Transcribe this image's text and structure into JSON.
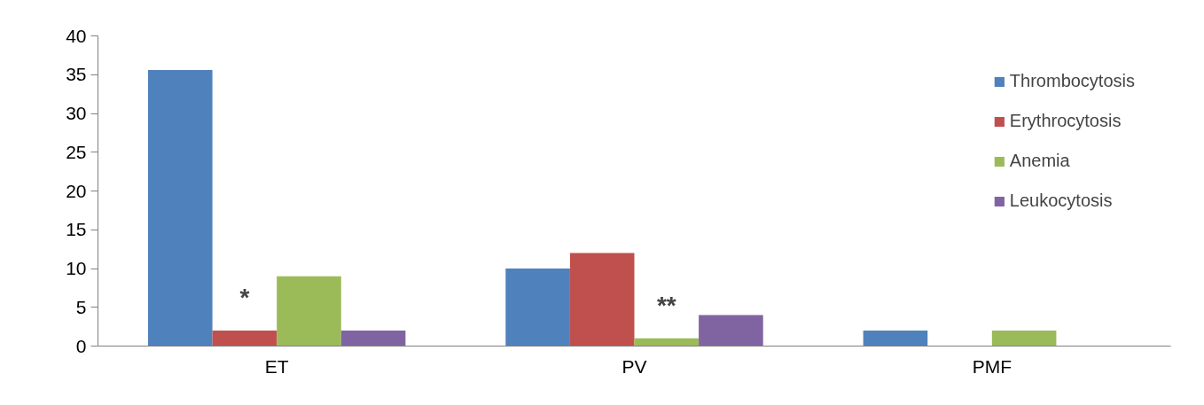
{
  "chart_data": {
    "type": "bar",
    "categories": [
      "ET",
      "PV",
      "PMF"
    ],
    "series": [
      {
        "name": "Thrombocytosis",
        "color": "#4f81bd",
        "values": [
          35.6,
          10,
          2
        ]
      },
      {
        "name": "Erythrocytosis",
        "color": "#c0504d",
        "values": [
          2,
          12,
          0
        ]
      },
      {
        "name": "Anemia",
        "color": "#9bbb59",
        "values": [
          9,
          1,
          2
        ]
      },
      {
        "name": "Leukocytosis",
        "color": "#8064a2",
        "values": [
          2,
          4,
          0
        ]
      }
    ],
    "ylim": [
      0,
      40
    ],
    "yticks": [
      0,
      5,
      10,
      15,
      20,
      25,
      30,
      35,
      40
    ],
    "grid": false,
    "legend": "top right",
    "annotations": [
      {
        "text": "*",
        "x": "ET",
        "y": 4.5
      },
      {
        "text": "**",
        "x": "PV",
        "y": 3.5
      }
    ]
  }
}
